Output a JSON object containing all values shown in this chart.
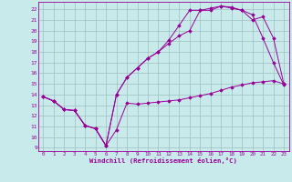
{
  "xlabel": "Windchill (Refroidissement éolien,°C)",
  "bg_color": "#c8eaea",
  "line_color": "#990099",
  "grid_color": "#9fbfbf",
  "xlim": [
    -0.5,
    23.5
  ],
  "ylim": [
    8.7,
    22.7
  ],
  "yticks": [
    9,
    10,
    11,
    12,
    13,
    14,
    15,
    16,
    17,
    18,
    19,
    20,
    21,
    22
  ],
  "xticks": [
    0,
    1,
    2,
    3,
    4,
    5,
    6,
    7,
    8,
    9,
    10,
    11,
    12,
    13,
    14,
    15,
    16,
    17,
    18,
    19,
    20,
    21,
    22,
    23
  ],
  "series": [
    {
      "x": [
        0,
        1,
        2,
        3,
        4,
        5,
        6,
        7,
        8,
        9,
        10,
        11,
        12,
        13,
        14,
        15,
        16,
        17,
        18,
        19,
        20,
        21,
        22,
        23
      ],
      "y": [
        13.8,
        13.4,
        12.6,
        12.5,
        11.1,
        10.8,
        9.2,
        10.7,
        13.2,
        13.1,
        13.2,
        13.3,
        13.4,
        13.5,
        13.7,
        13.9,
        14.1,
        14.4,
        14.7,
        14.9,
        15.1,
        15.2,
        15.3,
        15.0
      ]
    },
    {
      "x": [
        0,
        1,
        2,
        3,
        4,
        5,
        6,
        7,
        8,
        9,
        10,
        11,
        12,
        13,
        14,
        15,
        16,
        17,
        18,
        19,
        20,
        21,
        22,
        23
      ],
      "y": [
        13.8,
        13.4,
        12.6,
        12.5,
        11.1,
        10.8,
        9.2,
        14.0,
        15.6,
        16.5,
        17.4,
        18.0,
        18.8,
        19.5,
        20.0,
        21.9,
        21.9,
        22.3,
        22.2,
        21.9,
        21.5,
        19.3,
        17.0,
        14.9
      ]
    },
    {
      "x": [
        0,
        1,
        2,
        3,
        4,
        5,
        6,
        7,
        8,
        9,
        10,
        11,
        12,
        13,
        14,
        15,
        16,
        17,
        18,
        19,
        20,
        21,
        22,
        23
      ],
      "y": [
        13.8,
        13.4,
        12.6,
        12.5,
        11.1,
        10.8,
        9.2,
        14.0,
        15.6,
        16.5,
        17.4,
        18.0,
        19.1,
        20.5,
        21.9,
        21.9,
        22.1,
        22.3,
        22.1,
        21.9,
        21.0,
        21.3,
        19.3,
        15.0
      ]
    }
  ]
}
